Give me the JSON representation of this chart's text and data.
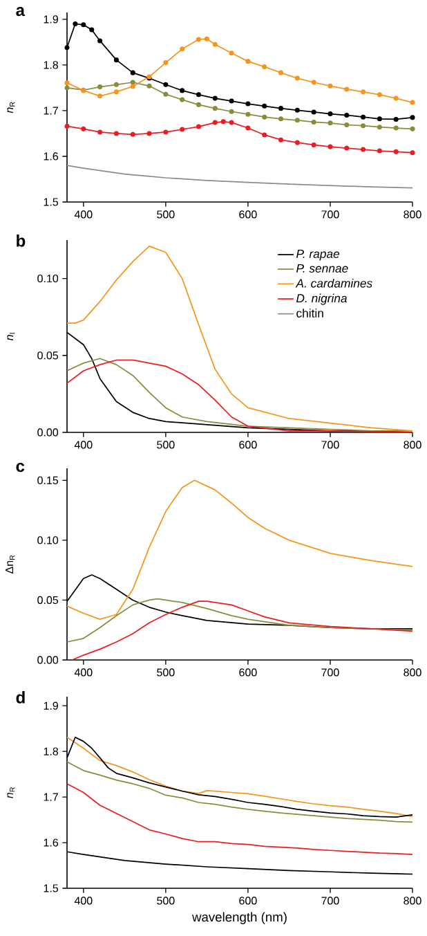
{
  "chart_data": [
    {
      "type": "line",
      "title": "a",
      "ylabel": "*n*$_{R}$",
      "marker": "circle",
      "line_style": "solid",
      "xlim": [
        380,
        800
      ],
      "ylim": [
        1.5,
        1.915
      ],
      "xticks": [
        400,
        500,
        600,
        700,
        800
      ],
      "yticks": [
        1.5,
        1.6,
        1.7,
        1.8,
        1.9
      ],
      "series": [
        {
          "color": "#000000",
          "x": [
            380,
            390,
            400,
            410,
            420,
            440,
            460,
            480,
            500,
            520,
            540,
            560,
            580,
            600,
            620,
            640,
            660,
            680,
            700,
            720,
            740,
            760,
            780,
            800
          ],
          "values": [
            1.838,
            1.89,
            1.888,
            1.877,
            1.853,
            1.811,
            1.783,
            1.771,
            1.757,
            1.744,
            1.735,
            1.727,
            1.721,
            1.715,
            1.71,
            1.705,
            1.701,
            1.697,
            1.693,
            1.69,
            1.686,
            1.682,
            1.681,
            1.685
          ]
        },
        {
          "color": "#8a8c3c",
          "x": [
            380,
            400,
            420,
            440,
            460,
            480,
            500,
            520,
            540,
            560,
            580,
            600,
            620,
            640,
            660,
            680,
            700,
            720,
            740,
            760,
            780,
            800
          ],
          "values": [
            1.75,
            1.745,
            1.752,
            1.757,
            1.762,
            1.754,
            1.736,
            1.724,
            1.713,
            1.705,
            1.698,
            1.692,
            1.686,
            1.682,
            1.679,
            1.675,
            1.673,
            1.669,
            1.667,
            1.664,
            1.662,
            1.66
          ]
        },
        {
          "color": "#f7941d",
          "x": [
            380,
            400,
            420,
            440,
            460,
            480,
            500,
            520,
            540,
            550,
            560,
            580,
            600,
            620,
            640,
            660,
            680,
            700,
            720,
            740,
            760,
            780,
            800
          ],
          "values": [
            1.761,
            1.744,
            1.732,
            1.741,
            1.753,
            1.774,
            1.805,
            1.835,
            1.856,
            1.857,
            1.845,
            1.826,
            1.808,
            1.796,
            1.783,
            1.771,
            1.762,
            1.754,
            1.747,
            1.741,
            1.735,
            1.727,
            1.718
          ]
        },
        {
          "color": "#ed1c24",
          "x": [
            380,
            400,
            420,
            440,
            460,
            480,
            500,
            520,
            540,
            560,
            570,
            580,
            600,
            620,
            640,
            660,
            680,
            700,
            720,
            740,
            760,
            780,
            800
          ],
          "values": [
            1.666,
            1.66,
            1.653,
            1.65,
            1.648,
            1.65,
            1.653,
            1.659,
            1.665,
            1.674,
            1.676,
            1.674,
            1.662,
            1.647,
            1.636,
            1.63,
            1.625,
            1.621,
            1.618,
            1.615,
            1.612,
            1.61,
            1.608
          ]
        },
        {
          "color": "#8c8c8c",
          "marker": "none",
          "x": [
            380,
            400,
            450,
            500,
            550,
            600,
            650,
            700,
            750,
            800
          ],
          "values": [
            1.58,
            1.574,
            1.561,
            1.553,
            1.547,
            1.543,
            1.539,
            1.536,
            1.533,
            1.531
          ]
        }
      ]
    },
    {
      "type": "line",
      "title": "b",
      "ylabel": "*n*$_{I}$",
      "legend": "top right",
      "line_style": "solid",
      "xlim": [
        380,
        800
      ],
      "ylim": [
        0,
        0.125
      ],
      "xticks": [
        400,
        500,
        600,
        700,
        800
      ],
      "yticks": [
        {
          "value": 0,
          "label": "0.00"
        },
        {
          "value": 0.05,
          "label": "0.05"
        },
        {
          "value": 0.1,
          "label": "0.10"
        }
      ],
      "series": [
        {
          "name": "*P. rapae*",
          "color": "#000000",
          "x": [
            380,
            400,
            410,
            420,
            440,
            460,
            480,
            500,
            550,
            600,
            650,
            700,
            750,
            800
          ],
          "values": [
            0.065,
            0.057,
            0.048,
            0.035,
            0.02,
            0.013,
            0.009,
            0.007,
            0.005,
            0.003,
            0.002,
            0.001,
            0.001,
            0.0
          ]
        },
        {
          "name": "*P. sennae*",
          "color": "#8a8c3c",
          "x": [
            380,
            400,
            420,
            440,
            460,
            480,
            500,
            520,
            550,
            600,
            650,
            700,
            750,
            800
          ],
          "values": [
            0.04,
            0.045,
            0.048,
            0.044,
            0.037,
            0.026,
            0.016,
            0.01,
            0.007,
            0.004,
            0.003,
            0.002,
            0.001,
            0.001
          ]
        },
        {
          "name": "*A. cardamines*",
          "color": "#f7941d",
          "x": [
            380,
            390,
            400,
            420,
            440,
            460,
            480,
            500,
            520,
            540,
            560,
            580,
            600,
            650,
            700,
            750,
            800
          ],
          "values": [
            0.071,
            0.071,
            0.073,
            0.085,
            0.099,
            0.111,
            0.121,
            0.117,
            0.1,
            0.07,
            0.041,
            0.025,
            0.016,
            0.009,
            0.006,
            0.003,
            0.001
          ]
        },
        {
          "name": "*D. nigrina*",
          "color": "#ed1c24",
          "x": [
            380,
            400,
            420,
            440,
            460,
            480,
            500,
            520,
            540,
            560,
            580,
            600,
            650,
            700,
            800
          ],
          "values": [
            0.032,
            0.04,
            0.044,
            0.047,
            0.047,
            0.045,
            0.043,
            0.038,
            0.031,
            0.021,
            0.01,
            0.004,
            0.001,
            0.001,
            0.0
          ]
        },
        {
          "name": "chitin",
          "color": "#8c8c8c"
        }
      ]
    },
    {
      "type": "line",
      "title": "c",
      "ylabel": "Δn$_{R}$",
      "line_style": "solid",
      "xlim": [
        380,
        800
      ],
      "ylim": [
        0,
        0.16
      ],
      "xticks": [
        400,
        500,
        600,
        700,
        800
      ],
      "yticks": [
        {
          "value": 0,
          "label": "0.00"
        },
        {
          "value": 0.05,
          "label": "0.05"
        },
        {
          "value": 0.1,
          "label": "0.10"
        },
        {
          "value": 0.15,
          "label": "0.15"
        }
      ],
      "series": [
        {
          "color": "#000000",
          "x": [
            380,
            400,
            410,
            420,
            440,
            460,
            480,
            500,
            520,
            550,
            600,
            650,
            700,
            750,
            800
          ],
          "values": [
            0.049,
            0.068,
            0.071,
            0.068,
            0.059,
            0.05,
            0.044,
            0.04,
            0.037,
            0.033,
            0.03,
            0.029,
            0.027,
            0.026,
            0.026
          ]
        },
        {
          "color": "#8a8c3c",
          "x": [
            380,
            400,
            420,
            440,
            460,
            480,
            490,
            500,
            520,
            550,
            580,
            600,
            650,
            700,
            750,
            800
          ],
          "values": [
            0.015,
            0.018,
            0.027,
            0.037,
            0.046,
            0.05,
            0.051,
            0.05,
            0.048,
            0.043,
            0.037,
            0.034,
            0.029,
            0.027,
            0.026,
            0.025
          ]
        },
        {
          "color": "#f7941d",
          "x": [
            380,
            400,
            420,
            440,
            460,
            480,
            500,
            520,
            535,
            560,
            580,
            600,
            620,
            650,
            700,
            750,
            800
          ],
          "values": [
            0.045,
            0.039,
            0.034,
            0.038,
            0.059,
            0.094,
            0.124,
            0.144,
            0.15,
            0.142,
            0.131,
            0.119,
            0.11,
            0.1,
            0.089,
            0.083,
            0.078
          ]
        },
        {
          "color": "#ed1c24",
          "x": [
            386,
            400,
            420,
            440,
            460,
            480,
            500,
            520,
            540,
            550,
            580,
            600,
            620,
            650,
            700,
            750,
            800
          ],
          "values": [
            0.0,
            0.004,
            0.009,
            0.015,
            0.022,
            0.031,
            0.038,
            0.044,
            0.049,
            0.049,
            0.046,
            0.041,
            0.036,
            0.031,
            0.028,
            0.026,
            0.024
          ]
        }
      ]
    },
    {
      "type": "line",
      "title": "d",
      "xlabel": "wavelength (nm)",
      "ylabel": "*n*$_{R}$",
      "line_style": "solid",
      "xlim": [
        380,
        800
      ],
      "ylim": [
        1.5,
        1.92
      ],
      "xticks": [
        400,
        500,
        600,
        700,
        800
      ],
      "yticks": [
        1.5,
        1.6,
        1.7,
        1.8,
        1.9
      ],
      "series": [
        {
          "color": "#8a8c3c",
          "x": [
            380,
            400,
            420,
            440,
            460,
            480,
            500,
            520,
            540,
            560,
            580,
            600,
            620,
            640,
            660,
            680,
            700,
            720,
            740,
            760,
            780,
            800
          ],
          "values": [
            1.777,
            1.758,
            1.748,
            1.737,
            1.729,
            1.719,
            1.704,
            1.698,
            1.688,
            1.684,
            1.678,
            1.673,
            1.669,
            1.665,
            1.662,
            1.659,
            1.656,
            1.653,
            1.651,
            1.649,
            1.646,
            1.645
          ]
        },
        {
          "color": "#f7941d",
          "x": [
            380,
            400,
            420,
            440,
            460,
            480,
            500,
            520,
            540,
            550,
            560,
            580,
            600,
            620,
            640,
            660,
            680,
            700,
            720,
            740,
            760,
            780,
            800
          ],
          "values": [
            1.831,
            1.807,
            1.78,
            1.769,
            1.755,
            1.738,
            1.724,
            1.713,
            1.708,
            1.714,
            1.713,
            1.71,
            1.707,
            1.702,
            1.696,
            1.69,
            1.685,
            1.681,
            1.678,
            1.673,
            1.669,
            1.664,
            1.657
          ]
        },
        {
          "color": "#000000",
          "x": [
            380,
            390,
            400,
            410,
            420,
            430,
            440,
            460,
            480,
            500,
            520,
            540,
            560,
            580,
            600,
            620,
            640,
            660,
            680,
            700,
            720,
            740,
            760,
            780,
            800
          ],
          "values": [
            1.786,
            1.831,
            1.822,
            1.807,
            1.786,
            1.764,
            1.752,
            1.742,
            1.731,
            1.722,
            1.713,
            1.705,
            1.701,
            1.695,
            1.688,
            1.684,
            1.679,
            1.673,
            1.669,
            1.665,
            1.663,
            1.659,
            1.657,
            1.656,
            1.661
          ]
        },
        {
          "color": "#ed1c24",
          "x": [
            380,
            400,
            420,
            440,
            460,
            480,
            500,
            520,
            540,
            560,
            580,
            600,
            620,
            640,
            660,
            680,
            700,
            720,
            740,
            760,
            780,
            800
          ],
          "values": [
            1.729,
            1.71,
            1.682,
            1.664,
            1.646,
            1.628,
            1.619,
            1.609,
            1.602,
            1.602,
            1.598,
            1.596,
            1.592,
            1.59,
            1.588,
            1.585,
            1.583,
            1.581,
            1.579,
            1.577,
            1.576,
            1.574
          ]
        },
        {
          "color": "#000000",
          "x": [
            380,
            400,
            450,
            500,
            550,
            600,
            650,
            700,
            750,
            800
          ],
          "values": [
            1.58,
            1.574,
            1.561,
            1.553,
            1.547,
            1.543,
            1.539,
            1.536,
            1.533,
            1.531
          ]
        }
      ]
    }
  ]
}
